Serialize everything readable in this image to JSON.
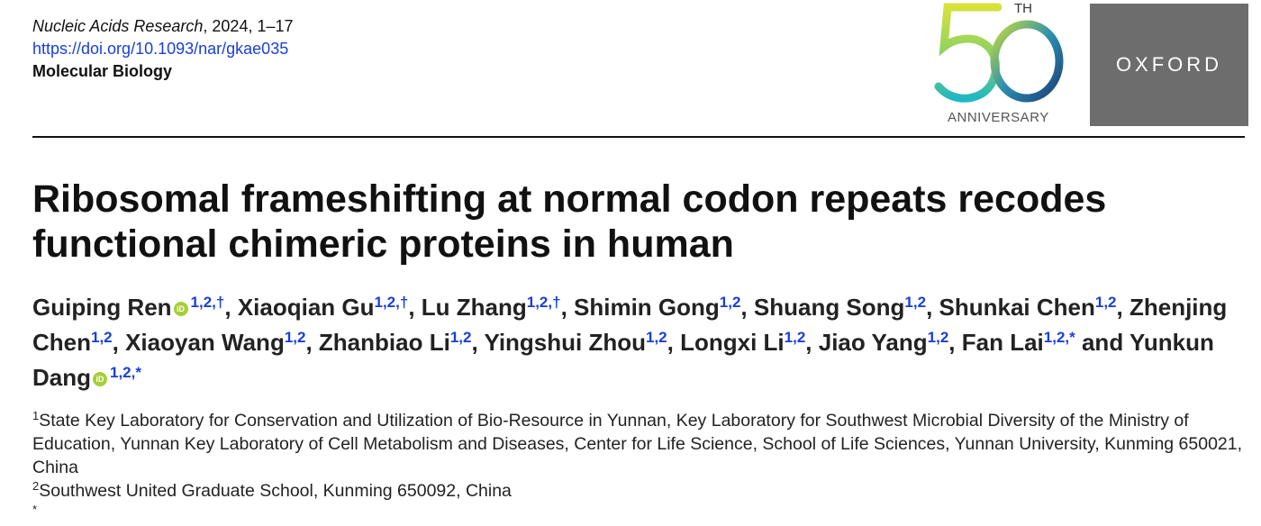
{
  "header": {
    "journal": "Nucleic Acids Research",
    "year_pages": ", 2024, 1–17",
    "doi": "https://doi.org/10.1093/nar/gkae035",
    "section": "Molecular Biology"
  },
  "anniversary_logo": {
    "number": "50",
    "suffix": "TH",
    "label": "ANNIVERSARY"
  },
  "publisher": "OXFORD",
  "colors": {
    "doi_blue": "#1a3fd8",
    "oxford_gray": "#6d6d6d",
    "orcid_green": "#a6ce39"
  },
  "title": "Ribosomal frameshifting at normal codon repeats recodes functional chimeric proteins in human",
  "authors": [
    {
      "name": "Guiping Ren",
      "orcid": true,
      "aff": "1,2,†"
    },
    {
      "name": "Xiaoqian Gu",
      "orcid": false,
      "aff": "1,2,†"
    },
    {
      "name": "Lu Zhang",
      "orcid": false,
      "aff": "1,2,†"
    },
    {
      "name": "Shimin Gong",
      "orcid": false,
      "aff": "1,2"
    },
    {
      "name": "Shuang Song",
      "orcid": false,
      "aff": "1,2"
    },
    {
      "name": "Shunkai Chen",
      "orcid": false,
      "aff": "1,2"
    },
    {
      "name": "Zhenjing Chen",
      "orcid": false,
      "aff": "1,2"
    },
    {
      "name": "Xiaoyan Wang",
      "orcid": false,
      "aff": "1,2"
    },
    {
      "name": "Zhanbiao Li",
      "orcid": false,
      "aff": "1,2"
    },
    {
      "name": "Yingshui Zhou",
      "orcid": false,
      "aff": "1,2"
    },
    {
      "name": "Longxi Li",
      "orcid": false,
      "aff": "1,2"
    },
    {
      "name": "Jiao Yang",
      "orcid": false,
      "aff": "1,2"
    },
    {
      "name": "Fan Lai",
      "orcid": false,
      "aff": "1,2,*"
    },
    {
      "name": "Yunkun Dang",
      "orcid": true,
      "aff": "1,2,*"
    }
  ],
  "authors_separators": {
    "comma": ", ",
    "and": " and "
  },
  "orcid_label": "iD",
  "affiliations": [
    {
      "mark": "1",
      "text": "State Key Laboratory for Conservation and Utilization of Bio-Resource in Yunnan, Key Laboratory for Southwest Microbial Diversity of the Ministry of Education, Yunnan Key Laboratory of Cell Metabolism and Diseases, Center for Life Science, School of Life Sciences, Yunnan University, Kunming 650021, China"
    },
    {
      "mark": "2",
      "text": "Southwest United Graduate School, Kunming 650092, China"
    },
    {
      "mark": "*",
      "text": ""
    }
  ]
}
